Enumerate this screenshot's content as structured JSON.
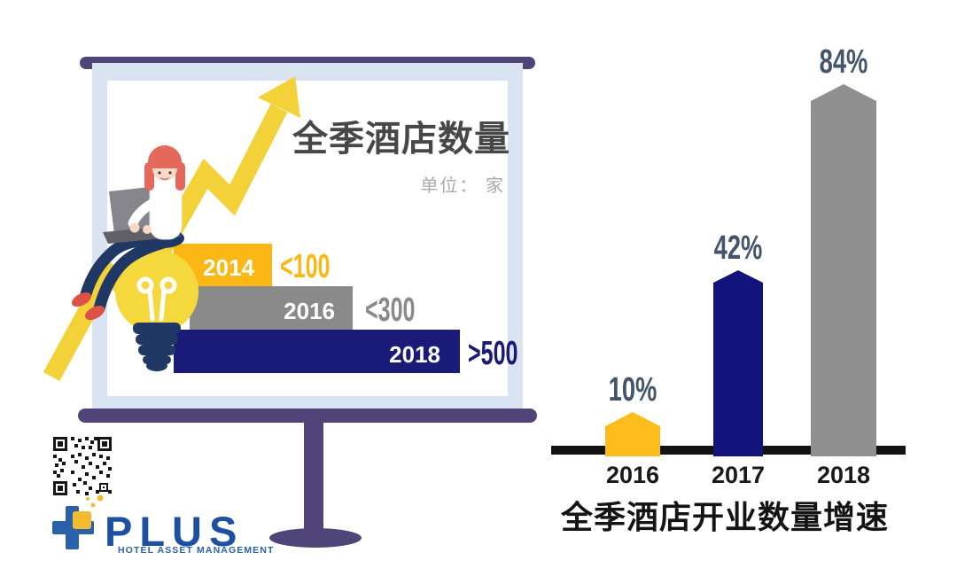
{
  "chart_data": [
    {
      "type": "bar",
      "orientation": "horizontal",
      "style": "stylized-step-infographic",
      "title": "全季酒店数量",
      "unit": "单位： 家",
      "categories": [
        "2014",
        "2016",
        "2018"
      ],
      "value_labels": [
        "<100",
        "<300",
        ">500"
      ],
      "values_approx": [
        100,
        300,
        500
      ],
      "bar_colors": [
        "#FBB814",
        "#8A8A8A",
        "#1A1A79"
      ],
      "category_text_color": "#FFFFFF",
      "title_color": "#474747",
      "unit_color": "#ABABAB"
    },
    {
      "type": "bar",
      "style": "pentagon-top-columns",
      "title": "全季酒店开业数量增速",
      "categories": [
        "2016",
        "2017",
        "2018"
      ],
      "values": [
        10,
        42,
        84
      ],
      "value_labels": [
        "10%",
        "42%",
        "84%"
      ],
      "bar_colors": [
        "#FCBD1C",
        "#13137C",
        "#8F8F8F"
      ],
      "label_color": "#44546A",
      "axis_color": "#121212",
      "ylim": [
        0,
        100
      ],
      "grid": false,
      "legend": false
    }
  ],
  "decor": {
    "board_color": "#4F4578",
    "board_frame_color": "#DAE3F1",
    "arrow_color": "#F3D139",
    "bulb_color": "#F5D73E"
  },
  "footer": {
    "logo_text": "PLUS",
    "logo_tagline": "HOTEL ASSET MANAGEMENT"
  }
}
